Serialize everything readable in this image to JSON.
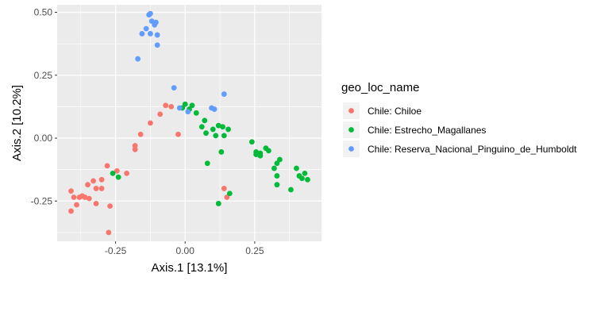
{
  "chart_data": {
    "type": "scatter",
    "title": "",
    "xlabel": "Axis.1   [13.1%]",
    "ylabel": "Axis.2   [10.2%]",
    "xlim": [
      -0.46,
      0.49
    ],
    "ylim": [
      -0.41,
      0.53
    ],
    "x_ticks": [
      -0.25,
      0.0,
      0.25
    ],
    "x_tick_labels": [
      "-0.25",
      "0.00",
      "0.25"
    ],
    "y_ticks": [
      -0.25,
      0.0,
      0.25,
      0.5
    ],
    "y_tick_labels": [
      "-0.25",
      "0.00",
      "0.25",
      "0.50"
    ],
    "grid": true,
    "panel_background": "#ebebeb",
    "legend": {
      "title": "geo_loc_name",
      "placement": "right"
    },
    "series": [
      {
        "name": "Chile: Chiloe",
        "color": "#F8766D",
        "points": [
          [
            -0.41,
            -0.21
          ],
          [
            -0.4,
            -0.235
          ],
          [
            -0.39,
            -0.265
          ],
          [
            -0.38,
            -0.235
          ],
          [
            -0.41,
            -0.29
          ],
          [
            -0.37,
            -0.23
          ],
          [
            -0.36,
            -0.235
          ],
          [
            -0.35,
            -0.185
          ],
          [
            -0.345,
            -0.24
          ],
          [
            -0.33,
            -0.17
          ],
          [
            -0.32,
            -0.2
          ],
          [
            -0.32,
            -0.26
          ],
          [
            -0.3,
            -0.2
          ],
          [
            -0.3,
            -0.165
          ],
          [
            -0.28,
            -0.11
          ],
          [
            -0.27,
            -0.27
          ],
          [
            -0.275,
            -0.375
          ],
          [
            -0.245,
            -0.13
          ],
          [
            -0.21,
            -0.14
          ],
          [
            -0.18,
            -0.045
          ],
          [
            -0.18,
            -0.03
          ],
          [
            -0.16,
            0.015
          ],
          [
            -0.125,
            0.06
          ],
          [
            -0.09,
            0.095
          ],
          [
            -0.07,
            0.13
          ],
          [
            -0.05,
            0.125
          ],
          [
            -0.025,
            0.015
          ],
          [
            0.14,
            -0.2
          ],
          [
            0.15,
            -0.235
          ]
        ]
      },
      {
        "name": "Chile: Estrecho_Magallanes",
        "color": "#00BA38",
        "points": [
          [
            -0.26,
            -0.14
          ],
          [
            -0.24,
            -0.155
          ],
          [
            -0.01,
            0.12
          ],
          [
            0.0,
            0.135
          ],
          [
            0.015,
            0.115
          ],
          [
            0.025,
            0.13
          ],
          [
            0.04,
            0.1
          ],
          [
            0.06,
            0.045
          ],
          [
            0.07,
            0.07
          ],
          [
            0.075,
            0.02
          ],
          [
            0.1,
            0.035
          ],
          [
            0.11,
            0.01
          ],
          [
            0.12,
            0.05
          ],
          [
            0.135,
            0.045
          ],
          [
            0.14,
            0.01
          ],
          [
            0.155,
            0.035
          ],
          [
            0.08,
            -0.1
          ],
          [
            0.13,
            -0.055
          ],
          [
            0.16,
            -0.22
          ],
          [
            0.12,
            -0.26
          ],
          [
            0.24,
            -0.015
          ],
          [
            0.255,
            -0.055
          ],
          [
            0.255,
            -0.065
          ],
          [
            0.27,
            -0.06
          ],
          [
            0.27,
            -0.07
          ],
          [
            0.29,
            -0.04
          ],
          [
            0.3,
            -0.05
          ],
          [
            0.32,
            -0.12
          ],
          [
            0.33,
            -0.1
          ],
          [
            0.34,
            -0.085
          ],
          [
            0.33,
            -0.15
          ],
          [
            0.33,
            -0.185
          ],
          [
            0.38,
            -0.205
          ],
          [
            0.4,
            -0.12
          ],
          [
            0.41,
            -0.15
          ],
          [
            0.42,
            -0.16
          ],
          [
            0.43,
            -0.14
          ],
          [
            0.44,
            -0.165
          ]
        ]
      },
      {
        "name": "Chile: Reserva_Nacional_Pinguino_de_Humboldt",
        "color": "#619CFF",
        "points": [
          [
            -0.17,
            0.315
          ],
          [
            -0.155,
            0.415
          ],
          [
            -0.14,
            0.435
          ],
          [
            -0.13,
            0.49
          ],
          [
            -0.125,
            0.495
          ],
          [
            -0.12,
            0.465
          ],
          [
            -0.125,
            0.415
          ],
          [
            -0.11,
            0.45
          ],
          [
            -0.105,
            0.46
          ],
          [
            -0.1,
            0.41
          ],
          [
            -0.1,
            0.37
          ],
          [
            -0.04,
            0.2
          ],
          [
            -0.02,
            0.12
          ],
          [
            0.01,
            0.105
          ],
          [
            0.095,
            0.12
          ],
          [
            0.105,
            0.115
          ],
          [
            0.14,
            0.175
          ]
        ]
      }
    ]
  }
}
